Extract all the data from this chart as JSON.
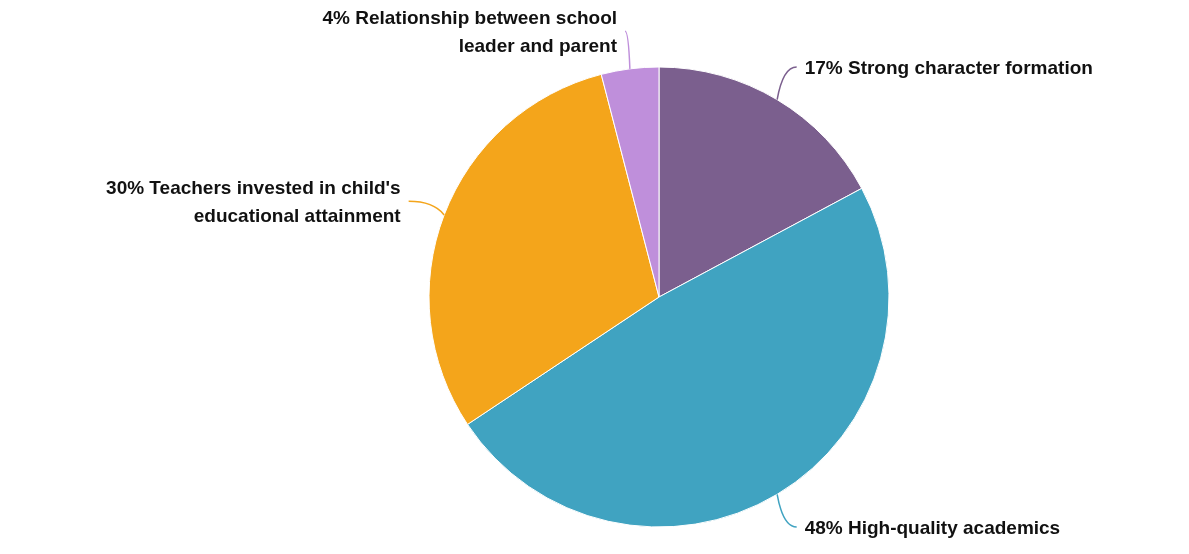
{
  "chart_data": {
    "type": "pie",
    "categories": [
      "Strong character formation",
      "High-quality academics",
      "Teachers invested in child's educational attainment",
      "Relationship between school leader and parent"
    ],
    "values": [
      17,
      48,
      30,
      4
    ],
    "value_labels": [
      "17%",
      "48%",
      "30%",
      "4%"
    ],
    "colors": [
      "#7b5f8e",
      "#40a3c1",
      "#f4a51b",
      "#bf8fdb"
    ]
  }
}
